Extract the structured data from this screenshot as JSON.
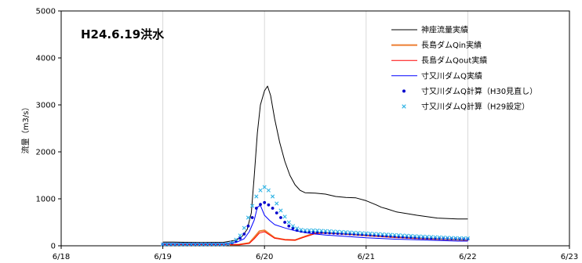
{
  "chart_data": {
    "type": "line",
    "annotation": "H24.6.19洪水",
    "ylabel": "流量（m3/s）",
    "xlabel": "",
    "ylim": [
      0,
      5000
    ],
    "yticks": [
      0,
      1000,
      2000,
      3000,
      4000,
      5000
    ],
    "xlim": [
      0,
      5
    ],
    "xticks": [
      0,
      1,
      2,
      3,
      4,
      5
    ],
    "xtick_labels": [
      "6/18",
      "6/19",
      "6/20",
      "6/21",
      "6/22",
      "6/23"
    ],
    "grid": "vertical",
    "legend_position": "top-right",
    "series": [
      {
        "name": "神座流量実績",
        "style": "line",
        "color": "#000000",
        "width": 1,
        "x": [
          1.0,
          1.1,
          1.2,
          1.4,
          1.6,
          1.72,
          1.78,
          1.83,
          1.87,
          1.9,
          1.93,
          1.96,
          2.0,
          2.03,
          2.06,
          2.1,
          2.15,
          2.2,
          2.25,
          2.3,
          2.35,
          2.4,
          2.5,
          2.6,
          2.7,
          2.8,
          2.9,
          3.0,
          3.1,
          3.15,
          3.2,
          3.3,
          3.5,
          3.7,
          3.9,
          4.0
        ],
        "y": [
          80,
          80,
          75,
          70,
          75,
          120,
          200,
          350,
          700,
          1500,
          2400,
          3000,
          3300,
          3400,
          3200,
          2700,
          2200,
          1800,
          1500,
          1300,
          1180,
          1130,
          1120,
          1100,
          1050,
          1030,
          1020,
          960,
          870,
          820,
          790,
          720,
          650,
          590,
          570,
          570
        ]
      },
      {
        "name": "長島ダムQin実績",
        "style": "line",
        "color": "#ED7D31",
        "width": 2,
        "x": [
          1.0,
          1.3,
          1.6,
          1.75,
          1.85,
          1.9,
          1.95,
          2.0,
          2.05,
          2.1,
          2.2,
          2.3,
          2.4,
          2.5,
          2.6,
          2.8,
          3.0,
          3.3,
          3.6,
          3.9,
          4.0
        ],
        "y": [
          20,
          20,
          20,
          25,
          60,
          180,
          310,
          330,
          250,
          170,
          130,
          120,
          200,
          270,
          280,
          250,
          220,
          180,
          150,
          130,
          120
        ]
      },
      {
        "name": "長島ダムQout実績",
        "style": "line",
        "color": "#FF0000",
        "width": 1,
        "x": [
          1.0,
          1.3,
          1.6,
          1.75,
          1.85,
          1.9,
          1.95,
          2.0,
          2.05,
          2.1,
          2.2,
          2.3,
          2.4,
          2.5,
          2.6,
          2.8,
          3.0,
          3.3,
          3.6,
          3.9,
          4.0
        ],
        "y": [
          20,
          20,
          20,
          25,
          50,
          150,
          270,
          300,
          230,
          160,
          130,
          120,
          190,
          260,
          270,
          250,
          220,
          180,
          150,
          130,
          120
        ]
      },
      {
        "name": "寸又川ダムQ実績",
        "style": "line",
        "color": "#0000FF",
        "width": 1,
        "x": [
          1.0,
          1.3,
          1.6,
          1.72,
          1.8,
          1.85,
          1.9,
          1.93,
          1.96,
          2.0,
          2.05,
          2.1,
          2.2,
          2.3,
          2.4,
          2.5,
          2.6,
          2.8,
          3.0,
          3.3,
          3.6,
          3.9,
          4.0
        ],
        "y": [
          50,
          50,
          50,
          70,
          150,
          300,
          550,
          820,
          860,
          650,
          540,
          450,
          380,
          320,
          280,
          250,
          230,
          200,
          170,
          140,
          120,
          100,
          100
        ]
      },
      {
        "name": "寸又川ダムQ計算（H30見直し）",
        "style": "dot",
        "color": "#0000CC",
        "x": [
          1.0,
          1.04,
          1.08,
          1.12,
          1.16,
          1.2,
          1.24,
          1.28,
          1.32,
          1.36,
          1.4,
          1.44,
          1.48,
          1.52,
          1.56,
          1.6,
          1.64,
          1.68,
          1.72,
          1.76,
          1.8,
          1.84,
          1.88,
          1.92,
          1.96,
          2.0,
          2.04,
          2.08,
          2.12,
          2.16,
          2.2,
          2.24,
          2.28,
          2.32,
          2.36,
          2.4,
          2.44,
          2.48,
          2.52,
          2.56,
          2.6,
          2.64,
          2.68,
          2.72,
          2.76,
          2.8,
          2.84,
          2.88,
          2.92,
          2.96,
          3.0,
          3.04,
          3.08,
          3.12,
          3.16,
          3.2,
          3.24,
          3.28,
          3.32,
          3.36,
          3.4,
          3.44,
          3.48,
          3.52,
          3.56,
          3.6,
          3.64,
          3.68,
          3.72,
          3.76,
          3.8,
          3.84,
          3.88,
          3.92,
          3.96,
          4.0
        ],
        "y": [
          30,
          30,
          30,
          30,
          30,
          30,
          30,
          30,
          30,
          30,
          30,
          30,
          30,
          30,
          30,
          30,
          40,
          60,
          100,
          160,
          250,
          420,
          600,
          800,
          880,
          920,
          870,
          800,
          700,
          600,
          500,
          420,
          370,
          330,
          310,
          300,
          300,
          295,
          290,
          285,
          280,
          275,
          270,
          265,
          262,
          260,
          255,
          250,
          245,
          240,
          235,
          230,
          225,
          220,
          215,
          210,
          205,
          200,
          195,
          190,
          186,
          182,
          178,
          174,
          170,
          166,
          162,
          160,
          158,
          156,
          154,
          152,
          150,
          148,
          146,
          145
        ]
      },
      {
        "name": "寸又川ダムQ計算（H29設定）",
        "style": "x",
        "color": "#33B5E5",
        "x": [
          1.0,
          1.04,
          1.08,
          1.12,
          1.16,
          1.2,
          1.24,
          1.28,
          1.32,
          1.36,
          1.4,
          1.44,
          1.48,
          1.52,
          1.56,
          1.6,
          1.64,
          1.68,
          1.72,
          1.76,
          1.8,
          1.84,
          1.88,
          1.92,
          1.96,
          2.0,
          2.04,
          2.08,
          2.12,
          2.16,
          2.2,
          2.24,
          2.28,
          2.32,
          2.36,
          2.4,
          2.44,
          2.48,
          2.52,
          2.56,
          2.6,
          2.64,
          2.68,
          2.72,
          2.76,
          2.8,
          2.84,
          2.88,
          2.92,
          2.96,
          3.0,
          3.04,
          3.08,
          3.12,
          3.16,
          3.2,
          3.24,
          3.28,
          3.32,
          3.36,
          3.4,
          3.44,
          3.48,
          3.52,
          3.56,
          3.6,
          3.64,
          3.68,
          3.72,
          3.76,
          3.8,
          3.84,
          3.88,
          3.92,
          3.96,
          4.0
        ],
        "y": [
          30,
          30,
          30,
          30,
          30,
          30,
          30,
          30,
          30,
          30,
          30,
          30,
          30,
          30,
          30,
          30,
          40,
          70,
          130,
          220,
          380,
          600,
          850,
          1050,
          1180,
          1250,
          1180,
          1050,
          900,
          750,
          620,
          500,
          420,
          370,
          340,
          330,
          330,
          330,
          325,
          320,
          315,
          310,
          305,
          300,
          295,
          290,
          285,
          280,
          275,
          270,
          265,
          260,
          255,
          250,
          245,
          240,
          235,
          230,
          225,
          220,
          215,
          210,
          205,
          200,
          196,
          192,
          188,
          184,
          180,
          176,
          172,
          168,
          165,
          162,
          160,
          158
        ]
      }
    ]
  }
}
